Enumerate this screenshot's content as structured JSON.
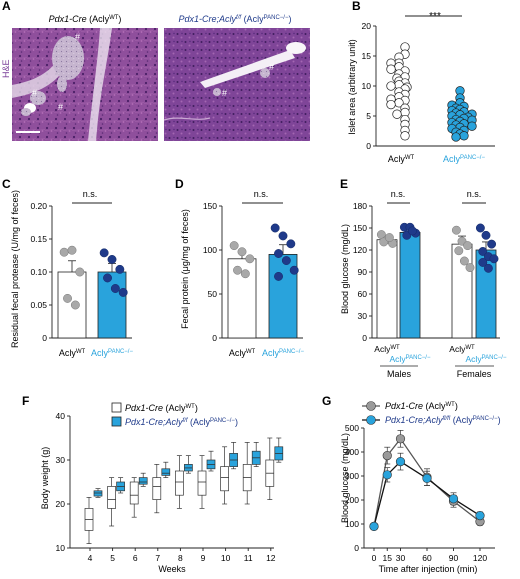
{
  "panels": {
    "A": {
      "letter": "A",
      "stain_label": "H&E",
      "left_title": {
        "italic": "Pdx1-Cre",
        "plain": " (Acly",
        "sup": "WT",
        "close": ")"
      },
      "right_title": {
        "italic": "Pdx1-Cre;Acly",
        "italic_sup": "f/f",
        "plain": " (Acly",
        "sup": "PANC−/−",
        "close": ")"
      },
      "islet_marker": "#"
    },
    "B": {
      "letter": "B",
      "ylabel": "Islet area (arbitrary unit)",
      "significance": "***",
      "tick_labels": [
        "0",
        "5",
        "10",
        "15",
        "20"
      ],
      "group_labels": [
        {
          "base": "Acly",
          "sup": "WT"
        },
        {
          "base": "Acly",
          "sup": "PANC−/−"
        }
      ]
    },
    "C": {
      "letter": "C",
      "ylabel": "Residual fecal protease (U/mg of feces)",
      "significance": "n.s.",
      "tick_labels": [
        "0",
        "0.05",
        "0.10",
        "0.15",
        "0.20"
      ],
      "group_labels": [
        {
          "base": "Acly",
          "sup": "WT"
        },
        {
          "base": "Acly",
          "sup": "PANC−/−"
        }
      ]
    },
    "D": {
      "letter": "D",
      "ylabel": "Fecal protein (μg/mg of feces)",
      "significance": "n.s.",
      "tick_labels": [
        "0",
        "50",
        "100",
        "150"
      ],
      "group_labels": [
        {
          "base": "Acly",
          "sup": "WT"
        },
        {
          "base": "Acly",
          "sup": "PANC−/−"
        }
      ]
    },
    "E": {
      "letter": "E",
      "ylabel": "Blood glucose (mg/dL)",
      "significance": [
        "n.s.",
        "n.s."
      ],
      "tick_labels": [
        "0",
        "30",
        "60",
        "90",
        "120",
        "150",
        "180"
      ],
      "group_labels": [
        {
          "base": "Acly",
          "sup": "WT"
        },
        {
          "base": "Acly",
          "sup": "PANC−/−"
        },
        {
          "base": "Acly",
          "sup": "WT"
        },
        {
          "base": "Acly",
          "sup": "PANC−/−"
        }
      ],
      "sex_labels": [
        "Males",
        "Females"
      ]
    },
    "F": {
      "letter": "F",
      "ylabel": "Body weight (g)",
      "xlabel": "Weeks",
      "tick_labels": [
        "10",
        "20",
        "30",
        "40"
      ],
      "legend": [
        {
          "italic": "Pdx1-Cre",
          "plain": " (Acly",
          "sup": "WT",
          "close": ")"
        },
        {
          "italic": "Pdx1-Cre;Acly",
          "italic_sup": "f/f",
          "plain": " (Acly",
          "sup": "PANC−/−",
          "close": ")"
        }
      ]
    },
    "G": {
      "letter": "G",
      "ylabel": "Blood glucose (mg/dL)",
      "xlabel": "Time after injection (min)",
      "tick_labels": [
        "0",
        "100",
        "200",
        "300",
        "400",
        "500"
      ],
      "legend": [
        {
          "italic": "Pdx1-Cre",
          "plain": " (Acly",
          "sup": "WT",
          "close": ")"
        },
        {
          "italic": "Pdx1-Cre;Acly",
          "italic_sup": "fl/fl",
          "plain": " (Acly",
          "sup": "PANC−/−",
          "close": ")"
        }
      ]
    }
  },
  "colors": {
    "wt_fill": "#ffffff",
    "wt_dot": "#a8a8a8",
    "ko_fill": "#29a3dc",
    "ko_dot": "#1f3a8a",
    "he_bg": "#8c4c9a",
    "axis": "#222222",
    "line_wt": "#555555",
    "line_ko": "#111111"
  },
  "chart_data": [
    {
      "panel": "B",
      "type": "scatter",
      "ylim": [
        0,
        20
      ],
      "series": [
        {
          "name": "AclyWT",
          "values": [
            16.5,
            15.3,
            14.8,
            13.8,
            13.8,
            13.2,
            12.8,
            12.5,
            12.0,
            11.5,
            11.3,
            10.8,
            10.5,
            10.2,
            10.0,
            9.8,
            9.5,
            9.0,
            8.6,
            8.2,
            7.8,
            7.6,
            7.2,
            6.9,
            6.3,
            5.6,
            5.3,
            4.4,
            3.6,
            2.6,
            1.7
          ]
        },
        {
          "name": "AclyPANC−/−",
          "values": [
            9.2,
            8.0,
            7.2,
            6.8,
            6.6,
            6.3,
            6.1,
            5.9,
            5.7,
            5.5,
            5.3,
            5.2,
            5.0,
            4.8,
            4.6,
            4.4,
            4.3,
            4.1,
            3.9,
            3.7,
            3.5,
            3.3,
            3.1,
            2.9,
            2.6,
            2.3,
            2.0,
            1.7,
            1.5
          ]
        }
      ]
    },
    {
      "panel": "C",
      "type": "bar",
      "ylim": [
        0,
        0.2
      ],
      "categories": [
        "AclyWT",
        "AclyPANC−/−"
      ],
      "values": [
        0.1,
        0.1
      ],
      "errors": [
        0.017,
        0.013
      ],
      "points": [
        [
          0.13,
          0.133,
          0.1,
          0.06,
          0.05
        ],
        [
          0.129,
          0.119,
          0.104,
          0.091,
          0.075,
          0.069
        ]
      ]
    },
    {
      "panel": "D",
      "type": "bar",
      "ylim": [
        0,
        150
      ],
      "categories": [
        "AclyWT",
        "AclyPANC−/−"
      ],
      "values": [
        90,
        95
      ],
      "errors": [
        9,
        11
      ],
      "points": [
        [
          105,
          98,
          90,
          77,
          73
        ],
        [
          125,
          116,
          107,
          96,
          88,
          77,
          70
        ]
      ]
    },
    {
      "panel": "E",
      "type": "bar",
      "ylim": [
        0,
        180
      ],
      "categories": [
        "Males AclyWT",
        "Males AclyPANC−/−",
        "Females AclyWT",
        "Females AclyPANC−/−"
      ],
      "values": [
        134,
        144,
        128,
        120
      ],
      "errors": [
        4,
        7,
        11,
        11
      ],
      "points": [
        [
          141,
          134,
          129,
          131,
          137
        ],
        [
          151,
          151,
          143,
          140,
          146
        ],
        [
          147,
          132,
          126,
          119,
          105,
          96
        ],
        [
          150,
          140,
          128,
          118,
          111,
          108,
          103,
          95
        ]
      ]
    },
    {
      "panel": "F",
      "type": "box",
      "x": [
        4,
        5,
        6,
        7,
        8,
        9,
        10,
        11,
        12
      ],
      "series": [
        {
          "name": "Pdx1-Cre (AclyWT)",
          "whisker_low": [
            11,
            15,
            17,
            18,
            19,
            19,
            20,
            20,
            21
          ],
          "q1": [
            14,
            19,
            20,
            21,
            22,
            22,
            23,
            23,
            24
          ],
          "median": [
            16.5,
            21,
            22,
            24,
            25,
            25,
            26,
            26,
            27
          ],
          "q3": [
            19,
            24,
            25,
            26,
            27.5,
            27.5,
            28.5,
            29,
            30
          ],
          "whisker_high": [
            21.5,
            26,
            26,
            29,
            31,
            31,
            33,
            34,
            35
          ]
        },
        {
          "name": "Pdx1-Cre;Aclyf/f (AclyPANC−/−)",
          "whisker_low": [
            21.5,
            22.5,
            24,
            26,
            27,
            27.5,
            28,
            28.5,
            29.5
          ],
          "q1": [
            21.8,
            23,
            24.5,
            26.5,
            27.5,
            28,
            28.5,
            29,
            30
          ],
          "median": [
            22.5,
            24,
            25,
            27,
            28.2,
            29,
            30,
            30.5,
            31.5
          ],
          "q3": [
            23,
            25,
            26,
            28,
            29,
            30,
            31.5,
            32,
            33
          ],
          "whisker_high": [
            23.5,
            26,
            27,
            29.5,
            31,
            32,
            34,
            34,
            35
          ]
        }
      ]
    },
    {
      "panel": "G",
      "type": "line",
      "x": [
        0,
        15,
        30,
        60,
        90,
        120
      ],
      "ylim": [
        0,
        500
      ],
      "series": [
        {
          "name": "Pdx1-Cre (AclyWT)",
          "values": [
            90,
            385,
            455,
            295,
            195,
            110
          ],
          "errors": [
            8,
            35,
            35,
            35,
            25,
            15
          ]
        },
        {
          "name": "Pdx1-Cre;Aclyfl/fl (AclyPANC−/−)",
          "values": [
            90,
            305,
            360,
            290,
            205,
            135
          ],
          "errors": [
            8,
            30,
            35,
            30,
            25,
            15
          ]
        }
      ]
    }
  ]
}
